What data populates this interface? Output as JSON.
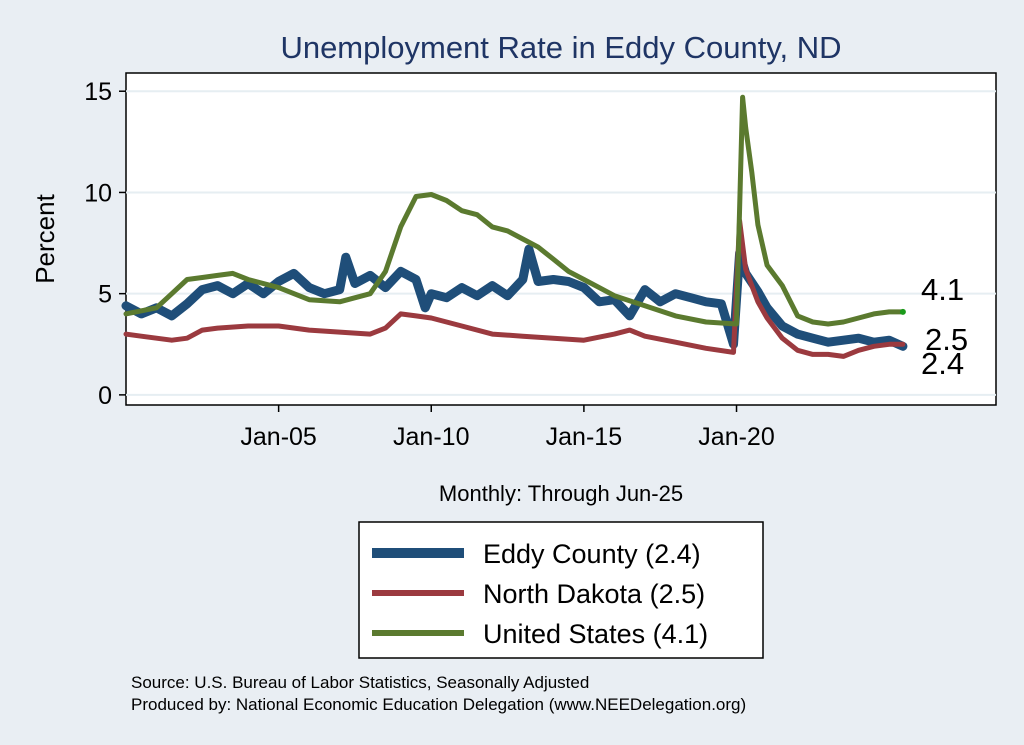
{
  "chart_data": {
    "type": "line",
    "title": "Unemployment Rate in Eddy  County, ND",
    "ylabel": "Percent",
    "xlabel": "Monthly: Through Jun-25",
    "xlim": [
      2000.0,
      2028.5
    ],
    "ylim": [
      -0.5,
      15.9
    ],
    "yticks": [
      0,
      5,
      10,
      15
    ],
    "xticks": [
      {
        "label": "Jan-05",
        "value": 2005
      },
      {
        "label": "Jan-10",
        "value": 2010
      },
      {
        "label": "Jan-15",
        "value": 2015
      },
      {
        "label": "Jan-20",
        "value": 2020
      }
    ],
    "series": [
      {
        "name": "Eddy  County",
        "legend_label": "Eddy  County (2.4)",
        "end_label": "2.4",
        "end_value": 2.4,
        "color": "#1f4e79",
        "width": 9,
        "x": [
          2000.0,
          2000.5,
          2001.0,
          2001.5,
          2002.0,
          2002.5,
          2003.0,
          2003.5,
          2004.0,
          2004.5,
          2005.0,
          2005.5,
          2006.0,
          2006.5,
          2007.0,
          2007.2,
          2007.5,
          2008.0,
          2008.5,
          2009.0,
          2009.5,
          2009.8,
          2010.0,
          2010.5,
          2011.0,
          2011.5,
          2012.0,
          2012.5,
          2013.0,
          2013.2,
          2013.5,
          2014.0,
          2014.5,
          2015.0,
          2015.5,
          2016.0,
          2016.5,
          2017.0,
          2017.5,
          2018.0,
          2018.5,
          2019.0,
          2019.5,
          2019.9,
          2020.1,
          2020.3,
          2020.7,
          2021.0,
          2021.5,
          2022.0,
          2022.5,
          2023.0,
          2023.5,
          2024.0,
          2024.5,
          2025.0,
          2025.45
        ],
        "values": [
          4.4,
          4.0,
          4.3,
          3.9,
          4.5,
          5.2,
          5.4,
          5.0,
          5.5,
          5.0,
          5.6,
          6.0,
          5.3,
          5.0,
          5.2,
          6.8,
          5.5,
          5.9,
          5.3,
          6.1,
          5.7,
          4.3,
          5.0,
          4.8,
          5.3,
          4.9,
          5.4,
          4.9,
          5.7,
          7.2,
          5.6,
          5.7,
          5.6,
          5.3,
          4.6,
          4.7,
          3.9,
          5.2,
          4.6,
          5.0,
          4.8,
          4.6,
          4.5,
          2.5,
          7.0,
          6.0,
          5.1,
          4.3,
          3.4,
          3.0,
          2.8,
          2.6,
          2.7,
          2.8,
          2.6,
          2.7,
          2.4
        ]
      },
      {
        "name": "North Dakota",
        "legend_label": "North Dakota (2.5)",
        "end_label": "2.5",
        "end_value": 2.5,
        "color": "#9b3a3f",
        "width": 5,
        "x": [
          2000.0,
          2000.5,
          2001.0,
          2001.5,
          2002.0,
          2002.5,
          2003.0,
          2004.0,
          2005.0,
          2006.0,
          2007.0,
          2008.0,
          2008.5,
          2009.0,
          2009.5,
          2010.0,
          2011.0,
          2012.0,
          2013.0,
          2014.0,
          2015.0,
          2016.0,
          2016.5,
          2017.0,
          2018.0,
          2019.0,
          2019.9,
          2020.1,
          2020.3,
          2020.7,
          2021.0,
          2021.5,
          2022.0,
          2022.5,
          2023.0,
          2023.5,
          2024.0,
          2024.5,
          2025.0,
          2025.45
        ],
        "values": [
          3.0,
          2.9,
          2.8,
          2.7,
          2.8,
          3.2,
          3.3,
          3.4,
          3.4,
          3.2,
          3.1,
          3.0,
          3.3,
          4.0,
          3.9,
          3.8,
          3.4,
          3.0,
          2.9,
          2.8,
          2.7,
          3.0,
          3.2,
          2.9,
          2.6,
          2.3,
          2.1,
          8.6,
          6.2,
          4.6,
          3.8,
          2.8,
          2.2,
          2.0,
          2.0,
          1.9,
          2.2,
          2.4,
          2.5,
          2.5
        ]
      },
      {
        "name": "United States",
        "legend_label": "United States (4.1)",
        "end_label": "4.1",
        "end_value": 4.1,
        "color": "#5b7a2f",
        "width": 5,
        "x": [
          2000.0,
          2001.0,
          2001.5,
          2002.0,
          2002.5,
          2003.0,
          2003.5,
          2004.0,
          2005.0,
          2006.0,
          2007.0,
          2008.0,
          2008.5,
          2009.0,
          2009.5,
          2010.0,
          2010.5,
          2011.0,
          2011.5,
          2012.0,
          2012.5,
          2013.0,
          2013.5,
          2014.0,
          2014.5,
          2015.0,
          2015.5,
          2016.0,
          2017.0,
          2018.0,
          2019.0,
          2020.0,
          2020.2,
          2020.3,
          2020.5,
          2020.7,
          2021.0,
          2021.5,
          2022.0,
          2022.5,
          2023.0,
          2023.5,
          2024.0,
          2024.5,
          2025.0,
          2025.45
        ],
        "values": [
          4.0,
          4.3,
          5.0,
          5.7,
          5.8,
          5.9,
          6.0,
          5.7,
          5.3,
          4.7,
          4.6,
          5.0,
          6.1,
          8.3,
          9.8,
          9.9,
          9.6,
          9.1,
          8.9,
          8.3,
          8.1,
          7.7,
          7.3,
          6.7,
          6.1,
          5.7,
          5.3,
          4.9,
          4.4,
          3.9,
          3.6,
          3.5,
          14.7,
          13.2,
          11.0,
          8.4,
          6.4,
          5.4,
          3.9,
          3.6,
          3.5,
          3.6,
          3.8,
          4.0,
          4.1,
          4.1
        ]
      }
    ]
  },
  "source_text": "Source: U.S. Bureau of Labor Statistics, Seasonally Adjusted",
  "producer_text": "Produced by: National Economic Education Delegation (www.NEEDelegation.org)"
}
